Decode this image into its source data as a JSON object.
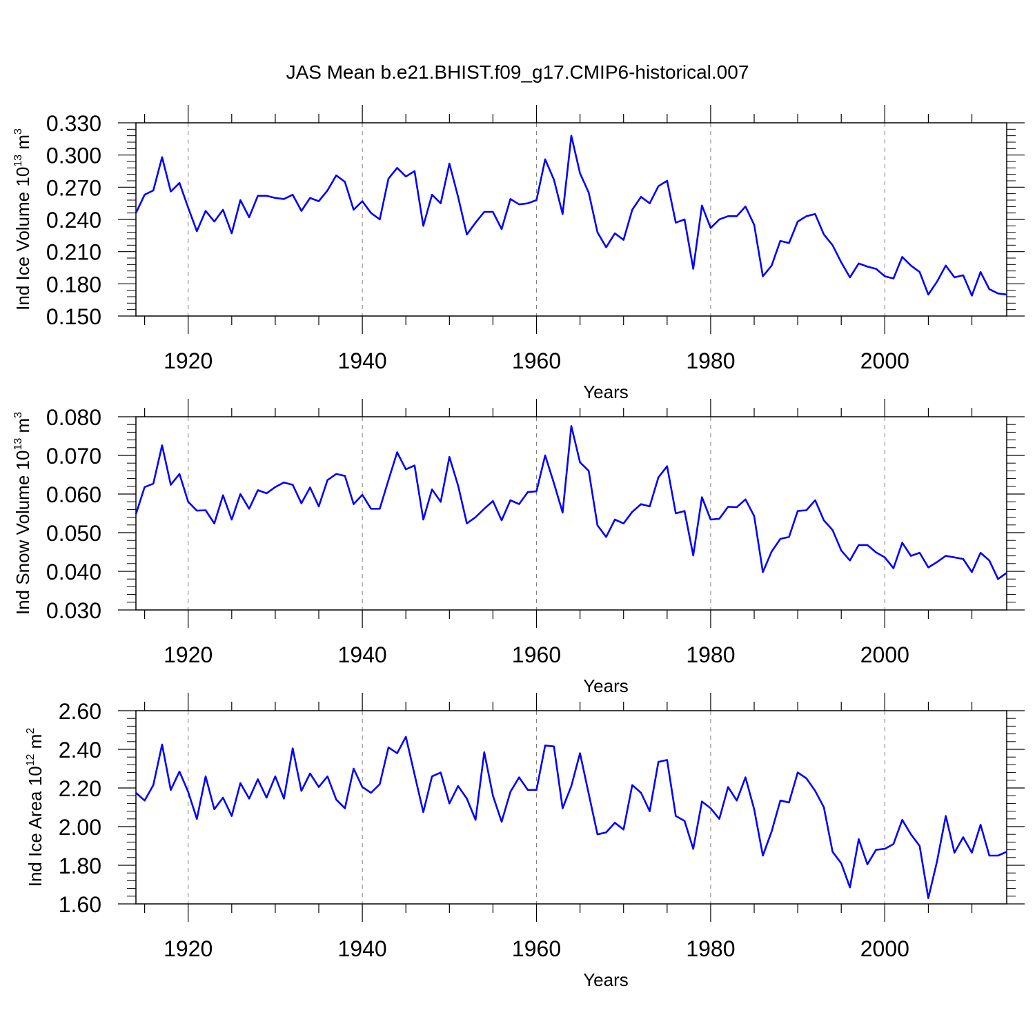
{
  "title": "JAS Mean b.e21.BHIST.f09_g17.CMIP6-historical.007",
  "colors": {
    "line": "#0000ff",
    "axis": "#000000",
    "grid": "#7f7f7f"
  },
  "chart_data": [
    {
      "type": "line",
      "name": "ice-volume",
      "ylabel_main": "Ind Ice Volume 10",
      "ylabel_exp": "13",
      "ylabel_unit": " m",
      "ylabel_unit_exp": "3",
      "xlabel": "Years",
      "xlim": [
        1914,
        2014
      ],
      "ylim": [
        0.15,
        0.33
      ],
      "yticks": [
        "0.150",
        "0.180",
        "0.210",
        "0.240",
        "0.270",
        "0.300",
        "0.330"
      ],
      "xticks": [
        "1920",
        "1940",
        "1960",
        "1980",
        "2000"
      ],
      "grid": "vertical dashed at major x ticks",
      "x": [
        1914,
        1915,
        1916,
        1917,
        1918,
        1919,
        1920,
        1921,
        1922,
        1923,
        1924,
        1925,
        1926,
        1927,
        1928,
        1929,
        1930,
        1931,
        1932,
        1933,
        1934,
        1935,
        1936,
        1937,
        1938,
        1939,
        1940,
        1941,
        1942,
        1943,
        1944,
        1945,
        1946,
        1947,
        1948,
        1949,
        1950,
        1951,
        1952,
        1953,
        1954,
        1955,
        1956,
        1957,
        1958,
        1959,
        1960,
        1961,
        1962,
        1963,
        1964,
        1965,
        1966,
        1967,
        1968,
        1969,
        1970,
        1971,
        1972,
        1973,
        1974,
        1975,
        1976,
        1977,
        1978,
        1979,
        1980,
        1981,
        1982,
        1983,
        1984,
        1985,
        1986,
        1987,
        1988,
        1989,
        1990,
        1991,
        1992,
        1993,
        1994,
        1995,
        1996,
        1997,
        1998,
        1999,
        2000,
        2001,
        2002,
        2003,
        2004,
        2005,
        2006,
        2007,
        2008,
        2009,
        2010,
        2011,
        2012,
        2013,
        2014
      ],
      "values": [
        0.246,
        0.263,
        0.267,
        0.298,
        0.266,
        0.274,
        0.251,
        0.229,
        0.248,
        0.238,
        0.249,
        0.227,
        0.258,
        0.242,
        0.262,
        0.262,
        0.26,
        0.259,
        0.263,
        0.248,
        0.26,
        0.257,
        0.267,
        0.281,
        0.275,
        0.249,
        0.257,
        0.246,
        0.24,
        0.278,
        0.288,
        0.28,
        0.285,
        0.234,
        0.263,
        0.255,
        0.292,
        0.261,
        0.226,
        0.237,
        0.247,
        0.247,
        0.231,
        0.259,
        0.254,
        0.255,
        0.258,
        0.296,
        0.277,
        0.245,
        0.318,
        0.283,
        0.265,
        0.228,
        0.214,
        0.227,
        0.221,
        0.249,
        0.261,
        0.255,
        0.271,
        0.276,
        0.237,
        0.24,
        0.194,
        0.253,
        0.232,
        0.24,
        0.243,
        0.243,
        0.252,
        0.235,
        0.187,
        0.197,
        0.22,
        0.218,
        0.238,
        0.243,
        0.245,
        0.226,
        0.216,
        0.2,
        0.186,
        0.199,
        0.196,
        0.194,
        0.187,
        0.185,
        0.205,
        0.197,
        0.191,
        0.17,
        0.182,
        0.197,
        0.186,
        0.188,
        0.169,
        0.191,
        0.175,
        0.171,
        0.17
      ]
    },
    {
      "type": "line",
      "name": "snow-volume",
      "ylabel_main": "Ind Snow Volume 10",
      "ylabel_exp": "13",
      "ylabel_unit": " m",
      "ylabel_unit_exp": "3",
      "xlabel": "Years",
      "xlim": [
        1914,
        2014
      ],
      "ylim": [
        0.03,
        0.08
      ],
      "yticks": [
        "0.030",
        "0.040",
        "0.050",
        "0.060",
        "0.070",
        "0.080"
      ],
      "xticks": [
        "1920",
        "1940",
        "1960",
        "1980",
        "2000"
      ],
      "grid": "vertical dashed at major x ticks",
      "x": [
        1914,
        1915,
        1916,
        1917,
        1918,
        1919,
        1920,
        1921,
        1922,
        1923,
        1924,
        1925,
        1926,
        1927,
        1928,
        1929,
        1930,
        1931,
        1932,
        1933,
        1934,
        1935,
        1936,
        1937,
        1938,
        1939,
        1940,
        1941,
        1942,
        1943,
        1944,
        1945,
        1946,
        1947,
        1948,
        1949,
        1950,
        1951,
        1952,
        1953,
        1954,
        1955,
        1956,
        1957,
        1958,
        1959,
        1960,
        1961,
        1962,
        1963,
        1964,
        1965,
        1966,
        1967,
        1968,
        1969,
        1970,
        1971,
        1972,
        1973,
        1974,
        1975,
        1976,
        1977,
        1978,
        1979,
        1980,
        1981,
        1982,
        1983,
        1984,
        1985,
        1986,
        1987,
        1988,
        1989,
        1990,
        1991,
        1992,
        1993,
        1994,
        1995,
        1996,
        1997,
        1998,
        1999,
        2000,
        2001,
        2002,
        2003,
        2004,
        2005,
        2006,
        2007,
        2008,
        2009,
        2010,
        2011,
        2012,
        2013,
        2014
      ],
      "values": [
        0.0548,
        0.0618,
        0.0627,
        0.0726,
        0.0624,
        0.0652,
        0.058,
        0.0557,
        0.0558,
        0.0524,
        0.0597,
        0.0534,
        0.06,
        0.0562,
        0.061,
        0.0602,
        0.0618,
        0.063,
        0.0624,
        0.0576,
        0.0617,
        0.0568,
        0.0636,
        0.0652,
        0.0647,
        0.0574,
        0.0598,
        0.0562,
        0.0562,
        0.0636,
        0.0708,
        0.0664,
        0.0674,
        0.0534,
        0.0612,
        0.058,
        0.0696,
        0.0622,
        0.0524,
        0.054,
        0.0562,
        0.0582,
        0.0532,
        0.0584,
        0.0574,
        0.0605,
        0.0607,
        0.07,
        0.0628,
        0.0552,
        0.0776,
        0.0682,
        0.066,
        0.0519,
        0.0489,
        0.0534,
        0.0524,
        0.0554,
        0.0574,
        0.0568,
        0.0643,
        0.0672,
        0.055,
        0.0556,
        0.0441,
        0.0592,
        0.0534,
        0.0536,
        0.0567,
        0.0566,
        0.0586,
        0.0543,
        0.0398,
        0.0451,
        0.0484,
        0.0489,
        0.0556,
        0.0558,
        0.0584,
        0.0532,
        0.0507,
        0.0454,
        0.0428,
        0.0468,
        0.0468,
        0.0449,
        0.0436,
        0.0408,
        0.0474,
        0.044,
        0.0448,
        0.041,
        0.0424,
        0.044,
        0.0436,
        0.0432,
        0.0398,
        0.0448,
        0.0428,
        0.038,
        0.0396
      ]
    },
    {
      "type": "line",
      "name": "ice-area",
      "ylabel_main": "Ind Ice Area 10",
      "ylabel_exp": "12",
      "ylabel_unit": " m",
      "ylabel_unit_exp": "2",
      "xlabel": "Years",
      "xlim": [
        1914,
        2014
      ],
      "ylim": [
        1.6,
        2.6
      ],
      "yticks": [
        "1.60",
        "1.80",
        "2.00",
        "2.20",
        "2.40",
        "2.60"
      ],
      "xticks": [
        "1920",
        "1940",
        "1960",
        "1980",
        "2000"
      ],
      "grid": "vertical dashed at major x ticks",
      "x": [
        1914,
        1915,
        1916,
        1917,
        1918,
        1919,
        1920,
        1921,
        1922,
        1923,
        1924,
        1925,
        1926,
        1927,
        1928,
        1929,
        1930,
        1931,
        1932,
        1933,
        1934,
        1935,
        1936,
        1937,
        1938,
        1939,
        1940,
        1941,
        1942,
        1943,
        1944,
        1945,
        1946,
        1947,
        1948,
        1949,
        1950,
        1951,
        1952,
        1953,
        1954,
        1955,
        1956,
        1957,
        1958,
        1959,
        1960,
        1961,
        1962,
        1963,
        1964,
        1965,
        1966,
        1967,
        1968,
        1969,
        1970,
        1971,
        1972,
        1973,
        1974,
        1975,
        1976,
        1977,
        1978,
        1979,
        1980,
        1981,
        1982,
        1983,
        1984,
        1985,
        1986,
        1987,
        1988,
        1989,
        1990,
        1991,
        1992,
        1993,
        1994,
        1995,
        1996,
        1997,
        1998,
        1999,
        2000,
        2001,
        2002,
        2003,
        2004,
        2005,
        2006,
        2007,
        2008,
        2009,
        2010,
        2011,
        2012,
        2013,
        2014
      ],
      "values": [
        2.175,
        2.135,
        2.215,
        2.425,
        2.19,
        2.285,
        2.18,
        2.04,
        2.26,
        2.09,
        2.15,
        2.055,
        2.225,
        2.145,
        2.245,
        2.15,
        2.26,
        2.145,
        2.405,
        2.185,
        2.275,
        2.205,
        2.26,
        2.14,
        2.095,
        2.3,
        2.205,
        2.175,
        2.22,
        2.41,
        2.38,
        2.465,
        2.27,
        2.075,
        2.26,
        2.28,
        2.12,
        2.21,
        2.145,
        2.035,
        2.385,
        2.16,
        2.025,
        2.18,
        2.255,
        2.19,
        2.19,
        2.42,
        2.415,
        2.095,
        2.21,
        2.38,
        2.17,
        1.96,
        1.97,
        2.02,
        1.985,
        2.215,
        2.175,
        2.08,
        2.335,
        2.345,
        2.055,
        2.03,
        1.885,
        2.13,
        2.095,
        2.04,
        2.205,
        2.135,
        2.255,
        2.09,
        1.85,
        1.975,
        2.135,
        2.125,
        2.28,
        2.25,
        2.185,
        2.1,
        1.87,
        1.81,
        1.685,
        1.935,
        1.805,
        1.88,
        1.885,
        1.91,
        2.035,
        1.96,
        1.9,
        1.63,
        1.82,
        2.055,
        1.865,
        1.945,
        1.865,
        2.01,
        1.85,
        1.85,
        1.87
      ]
    }
  ]
}
